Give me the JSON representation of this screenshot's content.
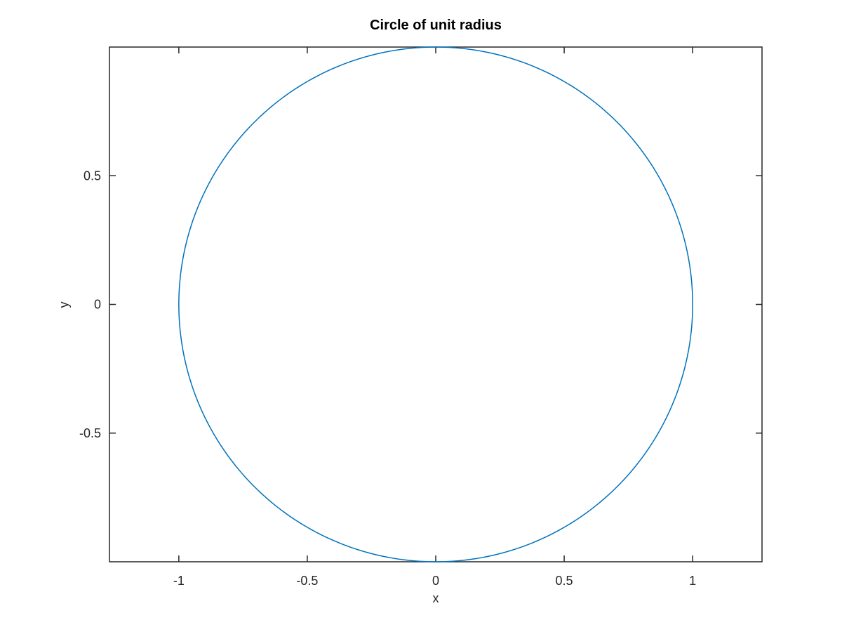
{
  "chart_data": {
    "type": "line",
    "title": "Circle of unit radius",
    "xlabel": "x",
    "ylabel": "y",
    "xlim": [
      -1.27,
      1.27
    ],
    "ylim": [
      -1,
      1
    ],
    "xticks": [
      -1,
      -0.5,
      0,
      0.5,
      1
    ],
    "xtick_labels": [
      "-1",
      "-0.5",
      "0",
      "0.5",
      "1"
    ],
    "yticks": [
      -0.5,
      0,
      0.5
    ],
    "ytick_labels": [
      "-0.5",
      "0",
      "0.5"
    ],
    "grid": false,
    "box": true,
    "series": [
      {
        "parametric": "x = cos(t), y = sin(t), t in [0, 2π]",
        "radius": 1,
        "center": [
          0,
          0
        ],
        "color": "#0072BD"
      }
    ]
  }
}
